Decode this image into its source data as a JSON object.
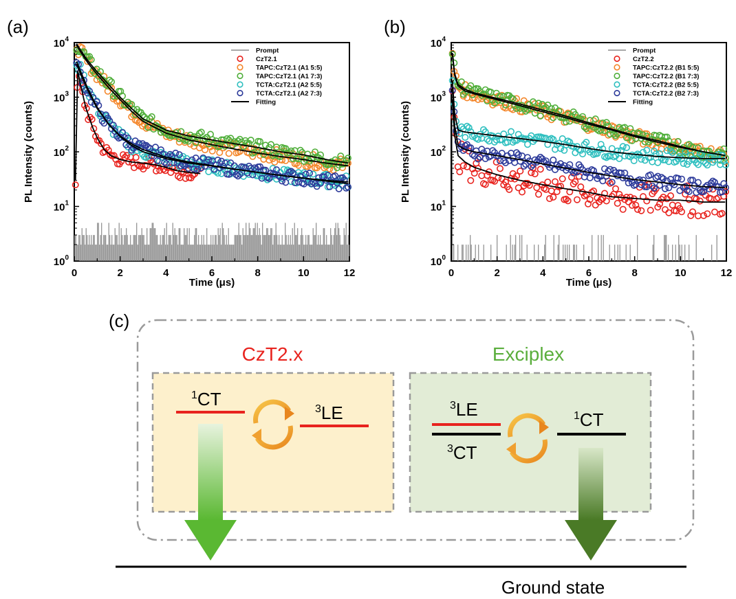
{
  "panels": {
    "a": {
      "label": "(a)"
    },
    "b": {
      "label": "(b)"
    },
    "c": {
      "label": "(c)"
    }
  },
  "chart_data": [
    {
      "type": "scatter",
      "panel": "(a)",
      "xlabel": "Time (μs)",
      "ylabel": "PL Intensity (counts)",
      "xlim": [
        0,
        12
      ],
      "ylim": [
        1,
        10000
      ],
      "y_scale": "log",
      "x_ticks": [
        "0",
        "2",
        "4",
        "6",
        "8",
        "10",
        "12"
      ],
      "y_ticks": [
        "10",
        "10",
        "10",
        "10",
        "10"
      ],
      "y_tick_exponents": [
        "0",
        "1",
        "2",
        "3",
        "4"
      ],
      "legend_position": "top-right",
      "legend": [
        "Prompt",
        "CzT2.1",
        "TAPC:CzT2.1 (A1 5:5)",
        "TAPC:CzT2.1 (A1 7:3)",
        "TCTA:CzT2.1 (A2 5:5)",
        "TCTA:CzT2.1 (A2 7:3)",
        "Fitting"
      ],
      "series": [
        {
          "name": "CzT2.1",
          "color": "#e8231e",
          "points": [
            [
              0.05,
              30
            ],
            [
              0.15,
              3000
            ],
            [
              0.3,
              1500
            ],
            [
              0.5,
              650
            ],
            [
              0.8,
              280
            ],
            [
              1.0,
              180
            ],
            [
              1.3,
              110
            ],
            [
              1.6,
              85
            ],
            [
              2.0,
              72
            ],
            [
              2.5,
              65
            ],
            [
              3.0,
              62
            ],
            [
              3.5,
              58
            ],
            [
              4.0,
              52
            ],
            [
              4.5,
              45
            ],
            [
              5.0,
              42
            ],
            [
              5.5,
              40
            ]
          ]
        },
        {
          "name": "TAPC:CzT2.1 (A1 5:5)",
          "color": "#f4862a",
          "points": [
            [
              0.1,
              9000
            ],
            [
              0.3,
              6500
            ],
            [
              0.6,
              4200
            ],
            [
              1.0,
              2600
            ],
            [
              1.5,
              1500
            ],
            [
              2.0,
              900
            ],
            [
              2.5,
              550
            ],
            [
              3.0,
              360
            ],
            [
              4.0,
              220
            ],
            [
              5.0,
              165
            ],
            [
              6.0,
              135
            ],
            [
              7.0,
              112
            ],
            [
              8.0,
              95
            ],
            [
              9.0,
              82
            ],
            [
              10.0,
              72
            ],
            [
              11.0,
              62
            ],
            [
              12.0,
              55
            ]
          ]
        },
        {
          "name": "TAPC:CzT2.1 (A1 7:3)",
          "color": "#4fae3a",
          "points": [
            [
              0.1,
              9500
            ],
            [
              0.3,
              7000
            ],
            [
              0.6,
              4600
            ],
            [
              1.0,
              2900
            ],
            [
              1.5,
              1700
            ],
            [
              2.0,
              1000
            ],
            [
              2.5,
              620
            ],
            [
              3.0,
              400
            ],
            [
              4.0,
              250
            ],
            [
              5.0,
              195
            ],
            [
              6.0,
              165
            ],
            [
              7.0,
              140
            ],
            [
              8.0,
              120
            ],
            [
              9.0,
              100
            ],
            [
              10.0,
              88
            ],
            [
              11.0,
              72
            ],
            [
              12.0,
              62
            ]
          ]
        },
        {
          "name": "TCTA:CzT2.1 (A2 5:5)",
          "color": "#2ebfbf",
          "points": [
            [
              0.1,
              4500
            ],
            [
              0.3,
              2800
            ],
            [
              0.6,
              1400
            ],
            [
              1.0,
              650
            ],
            [
              1.5,
              320
            ],
            [
              2.0,
              190
            ],
            [
              2.5,
              130
            ],
            [
              3.0,
              100
            ],
            [
              4.0,
              75
            ],
            [
              5.0,
              62
            ],
            [
              6.0,
              55
            ],
            [
              7.0,
              48
            ],
            [
              8.0,
              42
            ],
            [
              9.0,
              37
            ],
            [
              10.0,
              33
            ],
            [
              11.0,
              30
            ],
            [
              12.0,
              28
            ]
          ]
        },
        {
          "name": "TCTA:CzT2.1 (A2 7:3)",
          "color": "#2c3a9a",
          "points": [
            [
              0.1,
              4000
            ],
            [
              0.3,
              2500
            ],
            [
              0.6,
              1300
            ],
            [
              1.0,
              620
            ],
            [
              1.5,
              320
            ],
            [
              2.0,
              195
            ],
            [
              2.5,
              140
            ],
            [
              3.0,
              110
            ],
            [
              4.0,
              80
            ],
            [
              5.0,
              65
            ],
            [
              6.0,
              56
            ],
            [
              7.0,
              48
            ],
            [
              8.0,
              42
            ],
            [
              9.0,
              37
            ],
            [
              10.0,
              33
            ],
            [
              11.0,
              29
            ],
            [
              12.0,
              26
            ]
          ]
        }
      ]
    },
    {
      "type": "scatter",
      "panel": "(b)",
      "xlabel": "Time (μs)",
      "ylabel": "PL Intensity (counts)",
      "xlim": [
        0,
        12
      ],
      "ylim": [
        1,
        10000
      ],
      "y_scale": "log",
      "x_ticks": [
        "0",
        "2",
        "4",
        "6",
        "8",
        "10",
        "12"
      ],
      "y_ticks": [
        "10",
        "10",
        "10",
        "10",
        "10"
      ],
      "y_tick_exponents": [
        "0",
        "1",
        "2",
        "3",
        "4"
      ],
      "legend_position": "top-right",
      "legend": [
        "Prompt",
        "CzT2.2",
        "TAPC:CzT2.2 (B1 5:5)",
        "TAPC:CzT2.2 (B1 7:3)",
        "TCTA:CzT2.2 (B2 5:5)",
        "TCTA:CzT2.2 (B2 7:3)",
        "Fitting"
      ],
      "series": [
        {
          "name": "CzT2.2",
          "color": "#e8231e",
          "points": [
            [
              0.05,
              900
            ],
            [
              0.15,
              200
            ],
            [
              0.3,
              85
            ],
            [
              0.6,
              65
            ],
            [
              1.0,
              52
            ],
            [
              2.0,
              38
            ],
            [
              3.0,
              30
            ],
            [
              4.0,
              25
            ],
            [
              5.0,
              21
            ],
            [
              6.0,
              18
            ],
            [
              7.0,
              15
            ],
            [
              8.0,
              14
            ],
            [
              9.0,
              13
            ],
            [
              10.0,
              13
            ],
            [
              11.0,
              12
            ],
            [
              12.0,
              12
            ]
          ]
        },
        {
          "name": "TAPC:CzT2.2 (B1 5:5)",
          "color": "#f4862a",
          "points": [
            [
              0.05,
              6000
            ],
            [
              0.15,
              2500
            ],
            [
              0.3,
              1600
            ],
            [
              0.6,
              1300
            ],
            [
              1.0,
              1150
            ],
            [
              2.0,
              900
            ],
            [
              3.0,
              700
            ],
            [
              4.0,
              540
            ],
            [
              5.0,
              420
            ],
            [
              6.0,
              320
            ],
            [
              7.0,
              250
            ],
            [
              8.0,
              190
            ],
            [
              9.0,
              150
            ],
            [
              10.0,
              120
            ],
            [
              11.0,
              100
            ],
            [
              12.0,
              85
            ]
          ]
        },
        {
          "name": "TAPC:CzT2.2 (B1 7:3)",
          "color": "#4fae3a",
          "points": [
            [
              0.05,
              6500
            ],
            [
              0.15,
              2700
            ],
            [
              0.3,
              1700
            ],
            [
              0.6,
              1400
            ],
            [
              1.0,
              1200
            ],
            [
              2.0,
              950
            ],
            [
              3.0,
              750
            ],
            [
              4.0,
              580
            ],
            [
              5.0,
              450
            ],
            [
              6.0,
              340
            ],
            [
              7.0,
              260
            ],
            [
              8.0,
              200
            ],
            [
              9.0,
              160
            ],
            [
              10.0,
              125
            ],
            [
              11.0,
              100
            ],
            [
              12.0,
              85
            ]
          ]
        },
        {
          "name": "TCTA:CzT2.2 (B2 5:5)",
          "color": "#2ebfbf",
          "points": [
            [
              0.05,
              2000
            ],
            [
              0.15,
              500
            ],
            [
              0.3,
              250
            ],
            [
              0.6,
              230
            ],
            [
              1.0,
              220
            ],
            [
              2.0,
              195
            ],
            [
              3.0,
              175
            ],
            [
              4.0,
              155
            ],
            [
              5.0,
              135
            ],
            [
              6.0,
              115
            ],
            [
              7.0,
              100
            ],
            [
              8.0,
              90
            ],
            [
              9.0,
              82
            ],
            [
              10.0,
              78
            ],
            [
              11.0,
              75
            ],
            [
              12.0,
              75
            ]
          ]
        },
        {
          "name": "TCTA:CzT2.2 (B2 7:3)",
          "color": "#2c3a9a",
          "points": [
            [
              0.05,
              1500
            ],
            [
              0.15,
              300
            ],
            [
              0.3,
              130
            ],
            [
              0.6,
              110
            ],
            [
              1.0,
              100
            ],
            [
              2.0,
              85
            ],
            [
              3.0,
              72
            ],
            [
              4.0,
              60
            ],
            [
              5.0,
              50
            ],
            [
              6.0,
              42
            ],
            [
              7.0,
              36
            ],
            [
              8.0,
              31
            ],
            [
              9.0,
              28
            ],
            [
              10.0,
              25
            ],
            [
              11.0,
              23
            ],
            [
              12.0,
              22
            ]
          ]
        }
      ]
    }
  ],
  "diagram": {
    "left_title": "CzT2.x",
    "left_title_color": "#e8231e",
    "right_title": "Exciplex",
    "right_title_color": "#5aae3c",
    "left_level_1_sup": "1",
    "left_level_1": "CT",
    "left_level_2_sup": "3",
    "left_level_2": "LE",
    "right_level_1_sup": "3",
    "right_level_1": "LE",
    "right_level_2_sup": "3",
    "right_level_2": "CT",
    "right_level_3_sup": "1",
    "right_level_3": "CT",
    "ground": "Ground state",
    "left_box_color": "#fdf0cc",
    "right_box_color": "#e2ecd6"
  }
}
